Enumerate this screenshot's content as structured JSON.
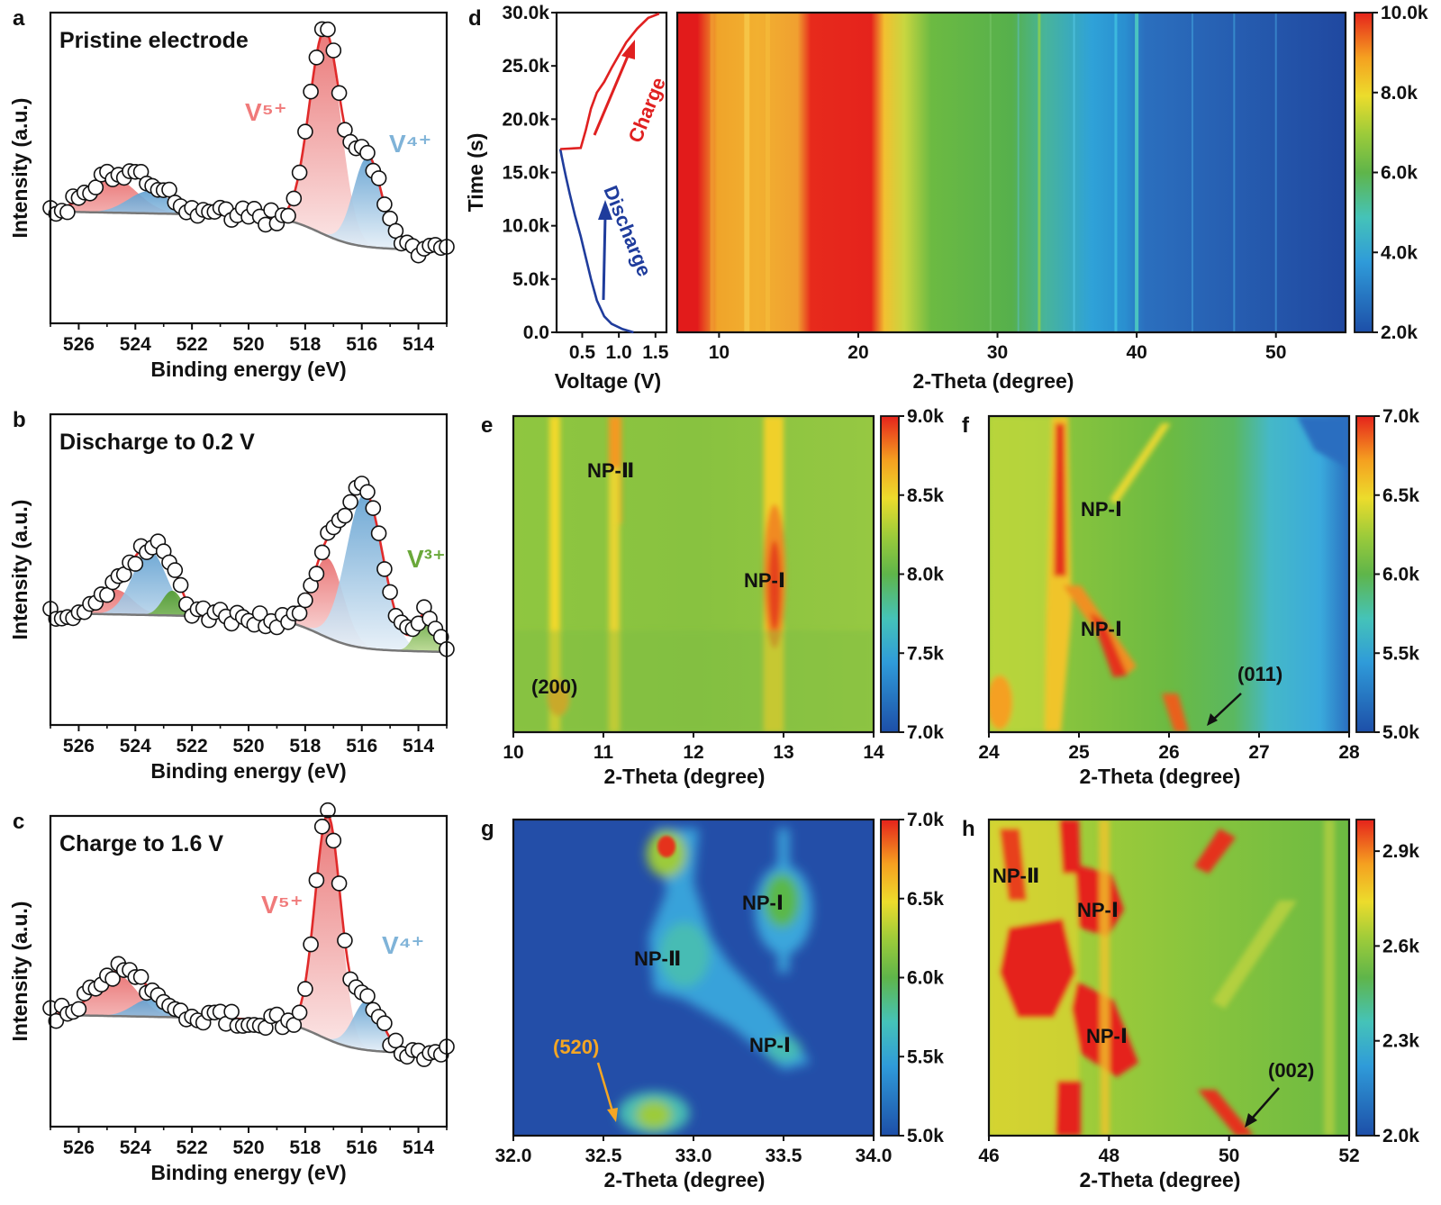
{
  "panels": {
    "a": {
      "letter": "a",
      "title": "Pristine electrode",
      "labels": [
        {
          "text": "V⁵⁺",
          "color": "#f07a7a"
        },
        {
          "text": "V⁴⁺",
          "color": "#7fb3d8"
        }
      ]
    },
    "b": {
      "letter": "b",
      "title": "Discharge to 0.2 V",
      "labels": [
        {
          "text": "V³⁺",
          "color": "#6aa83a"
        }
      ]
    },
    "c": {
      "letter": "c",
      "title": "Charge to 1.6 V",
      "labels": [
        {
          "text": "V⁵⁺",
          "color": "#f07a7a"
        },
        {
          "text": "V⁴⁺",
          "color": "#7fb3d8"
        }
      ]
    },
    "d": {
      "letter": "d",
      "charge_label": "Charge",
      "discharge_label": "Discharge"
    },
    "e": {
      "letter": "e",
      "labels": [
        "NP-Ⅱ",
        "NP-Ⅰ",
        "(200)"
      ]
    },
    "f": {
      "letter": "f",
      "labels": [
        "NP-Ⅰ",
        "NP-Ⅰ",
        "(011)"
      ]
    },
    "g": {
      "letter": "g",
      "labels": [
        "NP-Ⅰ",
        "NP-Ⅱ",
        "NP-Ⅰ",
        "(520)"
      ]
    },
    "h": {
      "letter": "h",
      "labels": [
        "NP-Ⅱ",
        "NP-Ⅰ",
        "NP-Ⅰ",
        "(002)"
      ]
    }
  },
  "chart_data": [
    {
      "id": "a",
      "type": "scatter",
      "xlabel": "Binding energy (eV)",
      "ylabel": "Intensity (a.u.)",
      "xlim": [
        527,
        513
      ],
      "x_ticks": [
        "526",
        "524",
        "522",
        "520",
        "518",
        "516",
        "514"
      ],
      "series": [
        {
          "name": "V⁵⁺",
          "peaks": [
            {
              "center": 517.3,
              "height": 0.82,
              "width": 0.55
            },
            {
              "center": 524.8,
              "height": 0.14,
              "width": 0.85
            }
          ]
        },
        {
          "name": "V⁴⁺",
          "peaks": [
            {
              "center": 515.8,
              "height": 0.36,
              "width": 0.5
            },
            {
              "center": 523.5,
              "height": 0.09,
              "width": 0.75
            }
          ]
        }
      ]
    },
    {
      "id": "b",
      "type": "scatter",
      "xlabel": "Binding energy (eV)",
      "ylabel": "Intensity (a.u.)",
      "xlim": [
        527,
        513
      ],
      "x_ticks": [
        "526",
        "524",
        "522",
        "520",
        "518",
        "516",
        "514"
      ],
      "series": [
        {
          "name": "V⁵⁺",
          "peaks": [
            {
              "center": 517.2,
              "height": 0.32,
              "width": 0.55
            },
            {
              "center": 524.7,
              "height": 0.1,
              "width": 0.6
            }
          ]
        },
        {
          "name": "V⁴⁺",
          "peaks": [
            {
              "center": 515.9,
              "height": 0.62,
              "width": 0.65
            },
            {
              "center": 523.5,
              "height": 0.26,
              "width": 0.6
            }
          ]
        },
        {
          "name": "V³⁺",
          "peaks": [
            {
              "center": 513.7,
              "height": 0.16,
              "width": 0.35
            },
            {
              "center": 522.7,
              "height": 0.1,
              "width": 0.35
            }
          ]
        }
      ]
    },
    {
      "id": "c",
      "type": "scatter",
      "xlabel": "Binding energy (eV)",
      "ylabel": "Intensity (a.u.)",
      "xlim": [
        527,
        513
      ],
      "x_ticks": [
        "526",
        "524",
        "522",
        "520",
        "518",
        "516",
        "514"
      ],
      "series": [
        {
          "name": "V⁵⁺",
          "peaks": [
            {
              "center": 517.2,
              "height": 0.9,
              "width": 0.45
            },
            {
              "center": 524.7,
              "height": 0.17,
              "width": 0.75
            }
          ]
        },
        {
          "name": "V⁴⁺",
          "peaks": [
            {
              "center": 515.8,
              "height": 0.2,
              "width": 0.5
            },
            {
              "center": 523.5,
              "height": 0.07,
              "width": 0.6
            }
          ]
        }
      ]
    },
    {
      "id": "d-voltage",
      "type": "line",
      "xlabel": "Voltage (V)",
      "ylabel": "Time (s)",
      "xlim": [
        0.15,
        1.65
      ],
      "ylim": [
        0,
        30000
      ],
      "x_ticks": [
        "0.5",
        "1.0",
        "1.5"
      ],
      "y_ticks": [
        "0.0",
        "5.0k",
        "10.0k",
        "15.0k",
        "20.0k",
        "25.0k",
        "30.0k"
      ],
      "series": [
        {
          "name": "Discharge",
          "x": [
            1.2,
            1.05,
            0.9,
            0.8,
            0.7,
            0.62,
            0.55,
            0.48,
            0.4,
            0.33,
            0.28,
            0.25,
            0.22,
            0.2
          ],
          "y": [
            0,
            300,
            800,
            1500,
            3000,
            5000,
            7000,
            9000,
            11000,
            13000,
            14500,
            15500,
            16500,
            17200
          ]
        },
        {
          "name": "Charge",
          "x": [
            0.2,
            0.48,
            0.55,
            0.62,
            0.7,
            0.8,
            0.9,
            1.0,
            1.1,
            1.25,
            1.4,
            1.55
          ],
          "y": [
            17200,
            17300,
            19000,
            21000,
            22500,
            23500,
            24800,
            26000,
            27200,
            28500,
            29500,
            29900
          ]
        }
      ]
    },
    {
      "id": "d-map",
      "type": "heatmap",
      "xlabel": "2-Theta (degree)",
      "xlim": [
        7,
        55
      ],
      "ylim": [
        0,
        30000
      ],
      "x_ticks": [
        "10",
        "20",
        "30",
        "40",
        "50"
      ],
      "colorbar": {
        "range": [
          2000,
          10000
        ],
        "ticks": [
          "2.0k",
          "4.0k",
          "6.0k",
          "8.0k",
          "10.0k"
        ]
      }
    },
    {
      "id": "e",
      "type": "heatmap",
      "xlabel": "2-Theta (degree)",
      "xlim": [
        10,
        14
      ],
      "x_ticks": [
        "10",
        "11",
        "12",
        "13",
        "14"
      ],
      "colorbar": {
        "range": [
          7000,
          9000
        ],
        "ticks": [
          "7.0k",
          "7.5k",
          "8.0k",
          "8.5k",
          "9.0k"
        ]
      }
    },
    {
      "id": "f",
      "type": "heatmap",
      "xlabel": "2-Theta (degree)",
      "xlim": [
        24,
        28
      ],
      "x_ticks": [
        "24",
        "25",
        "26",
        "27",
        "28"
      ],
      "colorbar": {
        "range": [
          5000,
          7000
        ],
        "ticks": [
          "5.0k",
          "5.5k",
          "6.0k",
          "6.5k",
          "7.0k"
        ]
      }
    },
    {
      "id": "g",
      "type": "heatmap",
      "xlabel": "2-Theta (degree)",
      "xlim": [
        32,
        34
      ],
      "x_ticks": [
        "32.0",
        "32.5",
        "33.0",
        "33.5",
        "34.0"
      ],
      "colorbar": {
        "range": [
          5000,
          7000
        ],
        "ticks": [
          "5.0k",
          "5.5k",
          "6.0k",
          "6.5k",
          "7.0k"
        ]
      }
    },
    {
      "id": "h",
      "type": "heatmap",
      "xlabel": "2-Theta (degree)",
      "xlim": [
        46,
        52
      ],
      "x_ticks": [
        "46",
        "48",
        "50",
        "52"
      ],
      "colorbar": {
        "range": [
          2000,
          3000
        ],
        "ticks": [
          "2.0k",
          "2.3k",
          "2.6k",
          "2.9k"
        ]
      }
    }
  ]
}
